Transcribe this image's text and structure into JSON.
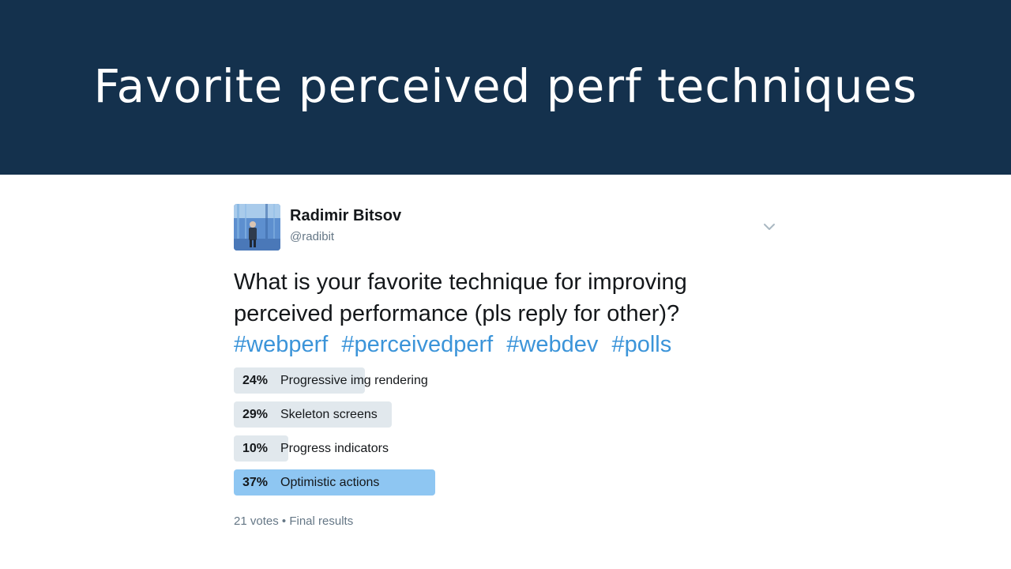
{
  "slide": {
    "title": "Favorite perceived perf techniques"
  },
  "tweet": {
    "author": {
      "name": "Radimir Bitsov",
      "handle": "@radibit"
    },
    "text_lines": [
      "What is your favorite technique for improving",
      "perceived performance (pls reply for other)?"
    ],
    "hashtags": [
      "#webperf",
      "#perceivedperf",
      "#webdev",
      "#polls"
    ],
    "poll": {
      "options": [
        {
          "percent_label": "24%",
          "label": "Progressive img rendering",
          "fraction": 0.24
        },
        {
          "percent_label": "29%",
          "label": "Skeleton screens",
          "fraction": 0.29
        },
        {
          "percent_label": "10%",
          "label": "Progress indicators",
          "fraction": 0.1
        },
        {
          "percent_label": "37%",
          "label": "Optimistic actions",
          "fraction": 0.37
        }
      ],
      "votes": "21 votes",
      "separator": "•",
      "status": "Final results"
    }
  },
  "colors": {
    "header_bg": "#14314d",
    "hashtag": "#3b94d9",
    "bar": "#e1e8ed",
    "bar_winner": "#8ec6f2"
  },
  "icons": {
    "menu": "chevron-down-icon"
  }
}
